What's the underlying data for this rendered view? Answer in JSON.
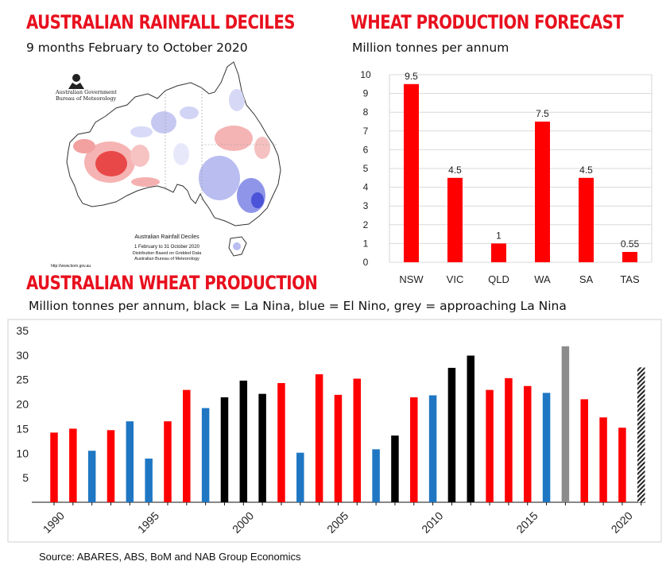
{
  "panels": {
    "rainfall": {
      "title": "AUSTRALIAN RAINFALL DECILES",
      "subtitle": "9 months February to October 2020",
      "map": {
        "agency_line1": "Australian Government",
        "agency_line2": "Bureau of Meteorology",
        "caption_line1": "Australian Rainfall Deciles",
        "caption_line2": "1 February to 31 October 2020",
        "caption_line3": "Distribution Based on Gridded Data",
        "caption_line4": "Australian Bureau of Meteorology",
        "url": "http://www.bom.gov.au"
      }
    },
    "forecast": {
      "title": "WHEAT PRODUCTION FORECAST",
      "subtitle": "Million tonnes per annum"
    },
    "production": {
      "title": "AUSTRALIAN WHEAT PRODUCTION",
      "subtitle": "Million tonnes per annum, black = La Nina, blue = El Nino, grey = approaching La Nina"
    }
  },
  "source": "Source: ABARES, ABS, BoM and NAB Group Economics",
  "colors": {
    "red": "#ff0000",
    "blue": "#1f77c4",
    "black": "#000000",
    "grey": "#8c8c8c",
    "title_red": "#e8101e"
  },
  "chart_data": [
    {
      "type": "bar",
      "categories": [
        "NSW",
        "VIC",
        "QLD",
        "WA",
        "SA",
        "TAS"
      ],
      "values": [
        9.5,
        4.5,
        1,
        7.5,
        4.5,
        0.55
      ],
      "data_labels": [
        "9.5",
        "4.5",
        "1",
        "7.5",
        "4.5",
        "0.55"
      ],
      "ylim": [
        0,
        10
      ],
      "yticks": [
        0,
        1,
        2,
        3,
        4,
        5,
        6,
        7,
        8,
        9,
        10
      ],
      "bar_color": "red",
      "grid": true
    },
    {
      "type": "bar",
      "x": [
        1990,
        1991,
        1992,
        1993,
        1994,
        1995,
        1996,
        1997,
        1998,
        1999,
        2000,
        2001,
        2002,
        2003,
        2004,
        2005,
        2006,
        2007,
        2008,
        2009,
        2010,
        2011,
        2012,
        2013,
        2014,
        2015,
        2016,
        2017,
        2018,
        2019,
        2020,
        2021
      ],
      "values": [
        14.2,
        15.0,
        10.5,
        14.7,
        16.5,
        8.9,
        16.5,
        22.9,
        19.2,
        21.4,
        24.8,
        22.1,
        24.3,
        10.1,
        26.1,
        21.9,
        25.2,
        10.8,
        13.6,
        21.4,
        21.8,
        27.4,
        29.9,
        22.9,
        25.3,
        23.7,
        22.3,
        31.8,
        21.0,
        17.3,
        15.2,
        27.5
      ],
      "colors": [
        "red",
        "red",
        "blue",
        "red",
        "blue",
        "blue",
        "red",
        "red",
        "blue",
        "black",
        "black",
        "black",
        "red",
        "blue",
        "red",
        "red",
        "red",
        "blue",
        "black",
        "red",
        "blue",
        "black",
        "black",
        "red",
        "red",
        "red",
        "blue",
        "grey",
        "red",
        "red",
        "red",
        "hatched"
      ],
      "xticks": [
        1990,
        1995,
        2000,
        2005,
        2010,
        2015,
        2020
      ],
      "yticks": [
        5,
        10,
        15,
        20,
        25,
        30,
        35
      ],
      "ylim": [
        0,
        35
      ],
      "grid": false
    }
  ]
}
